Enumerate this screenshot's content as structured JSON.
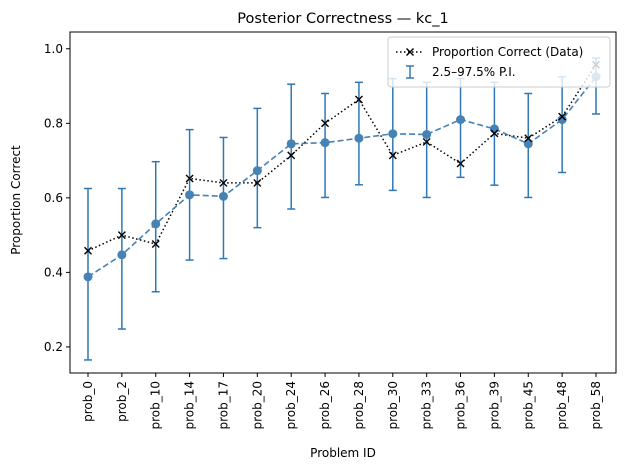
{
  "chart_data": {
    "type": "line",
    "title": "Posterior Correctness — kc_1",
    "xlabel": "Problem ID",
    "ylabel": "Proportion Correct",
    "categories": [
      "prob_0",
      "prob_2",
      "prob_10",
      "prob_14",
      "prob_17",
      "prob_20",
      "prob_24",
      "prob_26",
      "prob_28",
      "prob_30",
      "prob_33",
      "prob_36",
      "prob_39",
      "prob_45",
      "prob_48",
      "prob_58"
    ],
    "ylim": [
      0.13,
      1.045
    ],
    "yticks": [
      0.2,
      0.4,
      0.6,
      0.8,
      1.0
    ],
    "ytick_labels": [
      "0.2",
      "0.4",
      "0.6",
      "0.8",
      "1.0"
    ],
    "grid": false,
    "legend_position": "upper right",
    "series": [
      {
        "name": "Proportion Correct (Data)",
        "style": "dotted",
        "marker": "x",
        "color": "#000000",
        "values": [
          0.458,
          0.5,
          0.476,
          0.652,
          0.64,
          0.64,
          0.714,
          0.8,
          0.864,
          0.714,
          0.75,
          0.692,
          0.773,
          0.76,
          0.818,
          0.957
        ]
      },
      {
        "name": "",
        "style": "dashed",
        "marker": "o",
        "color": "#4682b4",
        "values": [
          0.388,
          0.447,
          0.53,
          0.608,
          0.604,
          0.673,
          0.745,
          0.748,
          0.76,
          0.772,
          0.77,
          0.81,
          0.785,
          0.745,
          0.81,
          0.925
        ],
        "interval_name": "2.5–97.5% P.I.",
        "interval_color": "#2f78b4",
        "lower": [
          0.165,
          0.248,
          0.348,
          0.433,
          0.437,
          0.52,
          0.57,
          0.601,
          0.635,
          0.62,
          0.601,
          0.655,
          0.634,
          0.601,
          0.668,
          0.825
        ],
        "upper": [
          0.625,
          0.625,
          0.697,
          0.783,
          0.762,
          0.84,
          0.905,
          0.88,
          0.91,
          0.92,
          0.91,
          0.92,
          0.91,
          0.88,
          0.925,
          0.975
        ]
      }
    ]
  }
}
